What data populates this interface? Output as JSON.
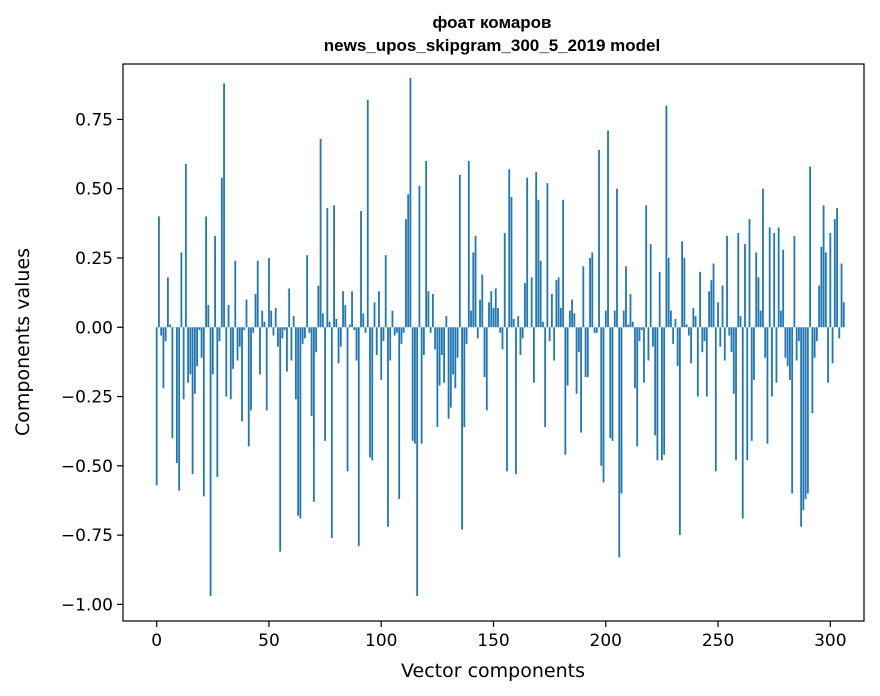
{
  "chart_data": {
    "type": "bar",
    "title": "фоат комаров",
    "subtitle": "news_upos_skipgram_300_5_2019 model",
    "xlabel": "Vector components",
    "ylabel": "Components values",
    "xlim": [
      -15,
      315
    ],
    "ylim": [
      -1.06,
      0.95
    ],
    "xticks": [
      0,
      50,
      100,
      150,
      200,
      250,
      300
    ],
    "xtick_labels": [
      "0",
      "50",
      "100",
      "150",
      "200",
      "250",
      "300"
    ],
    "yticks": [
      -1.0,
      -0.75,
      -0.5,
      -0.25,
      0.0,
      0.25,
      0.5,
      0.75
    ],
    "ytick_labels": [
      "−1.00",
      "−0.75",
      "−0.50",
      "−0.25",
      "0.00",
      "0.25",
      "0.50",
      "0.75"
    ],
    "grid": false,
    "legend": "none",
    "bar_color": "#1f77b4",
    "x_start": 0,
    "values": [
      -0.57,
      0.4,
      -0.03,
      -0.22,
      -0.05,
      0.18,
      0.01,
      -0.4,
      0.0,
      -0.49,
      -0.59,
      0.27,
      -0.26,
      0.59,
      -0.2,
      -0.17,
      -0.53,
      -0.24,
      -0.14,
      -0.01,
      -0.11,
      -0.61,
      0.4,
      0.08,
      -0.97,
      -0.17,
      0.33,
      -0.54,
      -0.05,
      0.54,
      0.88,
      -0.25,
      0.08,
      -0.26,
      -0.15,
      0.24,
      -0.12,
      -0.07,
      -0.34,
      -0.01,
      0.1,
      -0.43,
      -0.3,
      -0.02,
      0.12,
      0.24,
      -0.17,
      0.06,
      0.02,
      -0.3,
      0.25,
      0.06,
      -0.03,
      0.07,
      -0.07,
      -0.81,
      -0.04,
      -0.01,
      -0.16,
      0.14,
      -0.12,
      0.04,
      -0.26,
      -0.68,
      -0.69,
      -0.06,
      -0.04,
      0.26,
      -0.02,
      -0.32,
      -0.63,
      -0.09,
      0.15,
      0.68,
      0.05,
      -0.41,
      0.43,
      0.02,
      -0.76,
      0.44,
      0.03,
      -0.13,
      -0.07,
      0.13,
      0.08,
      -0.52,
      0.01,
      0.13,
      -0.01,
      -0.12,
      -0.79,
      0.42,
      0.05,
      -0.02,
      0.82,
      -0.47,
      -0.48,
      0.09,
      -0.1,
      0.13,
      -0.19,
      -0.05,
      0.26,
      -0.72,
      -0.12,
      0.06,
      -0.03,
      -0.02,
      -0.62,
      -0.06,
      -0.02,
      0.39,
      0.48,
      0.9,
      -0.41,
      -0.42,
      -0.97,
      0.51,
      -0.42,
      -0.1,
      0.6,
      0.13,
      -0.02,
      0.12,
      -0.08,
      -0.36,
      -0.21,
      -0.1,
      -0.2,
      0.04,
      -0.33,
      -0.29,
      -0.17,
      -0.22,
      -0.11,
      0.55,
      -0.73,
      -0.36,
      -0.06,
      0.6,
      0.06,
      0.27,
      0.33,
      -0.04,
      0.1,
      0.19,
      -0.18,
      -0.3,
      0.09,
      0.13,
      0.07,
      0.14,
      0.07,
      -0.02,
      -0.08,
      0.34,
      -0.52,
      0.57,
      0.47,
      0.03,
      -0.53,
      0.04,
      -0.1,
      -0.04,
      0.16,
      0.54,
      0.0,
      0.18,
      -0.2,
      0.56,
      0.46,
      0.24,
      0.02,
      -0.36,
      0.52,
      -0.05,
      0.12,
      -0.12,
      0.17,
      0.18,
      0.07,
      0.46,
      -0.46,
      -0.21,
      0.06,
      0.1,
      0.05,
      -0.24,
      -0.09,
      -0.38,
      0.22,
      -0.18,
      -0.18,
      0.25,
      0.27,
      -0.02,
      -0.02,
      0.64,
      -0.5,
      -0.56,
      0.06,
      0.71,
      -0.4,
      -0.41,
      0.06,
      0.5,
      -0.83,
      -0.6,
      0.06,
      0.22,
      0.01,
      0.12,
      0.02,
      -0.22,
      -0.43,
      -0.05,
      -0.01,
      -0.2,
      0.44,
      -0.12,
      0.3,
      -0.07,
      -0.39,
      -0.48,
      0.2,
      -0.48,
      -0.46,
      0.8,
      0.25,
      0.06,
      -0.06,
      0.03,
      -0.14,
      -0.75,
      0.31,
      0.25,
      0.01,
      -0.03,
      -0.13,
      0.07,
      0.04,
      -0.25,
      0.2,
      -0.09,
      -0.05,
      -0.25,
      0.13,
      0.17,
      0.23,
      -0.52,
      0.09,
      -0.07,
      0.15,
      -0.12,
      0.33,
      -0.03,
      -0.09,
      -0.24,
      -0.48,
      0.34,
      0.04,
      -0.69,
      0.3,
      -0.48,
      0.39,
      -0.41,
      -0.19,
      0.27,
      0.18,
      0.06,
      0.5,
      -0.11,
      -0.42,
      0.36,
      -0.25,
      0.34,
      -0.2,
      0.36,
      0.06,
      0.28,
      -0.11,
      -0.14,
      -0.19,
      -0.6,
      0.33,
      -0.12,
      -0.05,
      -0.72,
      -0.66,
      -0.62,
      -0.6,
      0.58,
      -0.31,
      -0.11,
      -0.05,
      0.15,
      0.29,
      0.44,
      0.27,
      -0.2,
      0.34,
      -0.13,
      0.39,
      0.43,
      -0.04,
      0.23,
      0.09
    ]
  }
}
